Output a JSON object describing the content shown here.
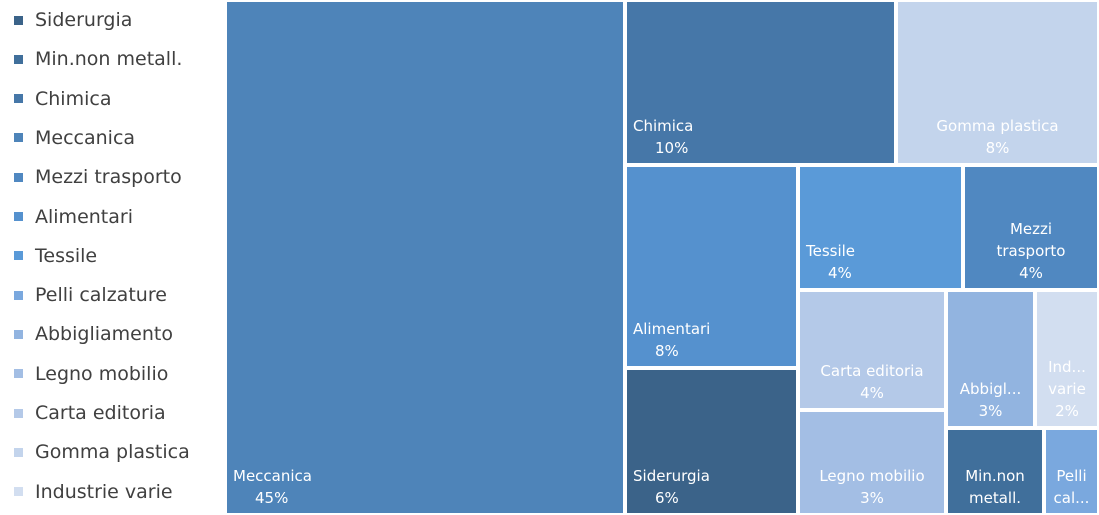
{
  "chart_data": {
    "type": "treemap",
    "title": "",
    "categories": [
      {
        "name": "Siderurgia",
        "legend": "Siderurgia",
        "label": "Siderurgia",
        "pct_label": "6%",
        "value": 6,
        "color": "#3b6389"
      },
      {
        "name": "Min.non metall.",
        "legend": "Min.non metall.",
        "label": "Min.non metall.",
        "pct_label": "",
        "value": 2,
        "color": "#406f9b"
      },
      {
        "name": "Chimica",
        "legend": "Chimica",
        "label": "Chimica",
        "pct_label": "10%",
        "value": 10,
        "color": "#4677a8"
      },
      {
        "name": "Meccanica",
        "legend": "Meccanica",
        "label": "Meccanica",
        "pct_label": "45%",
        "value": 45,
        "color": "#4e84b9"
      },
      {
        "name": "Mezzi trasporto",
        "legend": "Mezzi trasporto",
        "label": "Mezzi trasporto",
        "pct_label": "4%",
        "value": 4,
        "color": "#5088c1"
      },
      {
        "name": "Alimentari",
        "legend": "Alimentari",
        "label": "Alimentari",
        "pct_label": "8%",
        "value": 8,
        "color": "#5591ce"
      },
      {
        "name": "Tessile",
        "legend": "Tessile",
        "label": "Tessile",
        "pct_label": "4%",
        "value": 4,
        "color": "#5a9ad8"
      },
      {
        "name": "Pelli calzature",
        "legend": "Pelli calzature",
        "label": "Pelli cal...",
        "pct_label": "",
        "value": 1,
        "color": "#7aa8de"
      },
      {
        "name": "Abbigliamento",
        "legend": "Abbigliamento",
        "label": "Abbigl...",
        "pct_label": "3%",
        "value": 3,
        "color": "#92b4e0"
      },
      {
        "name": "Legno mobilio",
        "legend": "Legno mobilio",
        "label": "Legno mobilio",
        "pct_label": "3%",
        "value": 3,
        "color": "#a3bee4"
      },
      {
        "name": "Carta editoria",
        "legend": "Carta editoria",
        "label": "Carta editoria",
        "pct_label": "4%",
        "value": 4,
        "color": "#b4c9e8"
      },
      {
        "name": "Gomma plastica",
        "legend": "Gomma plastica",
        "label": "Gomma plastica",
        "pct_label": "8%",
        "value": 8,
        "color": "#c3d4ec"
      },
      {
        "name": "Industrie varie",
        "legend": "Industrie varie",
        "label": "Ind... varie",
        "pct_label": "2%",
        "value": 2,
        "color": "#d2def0"
      }
    ]
  }
}
